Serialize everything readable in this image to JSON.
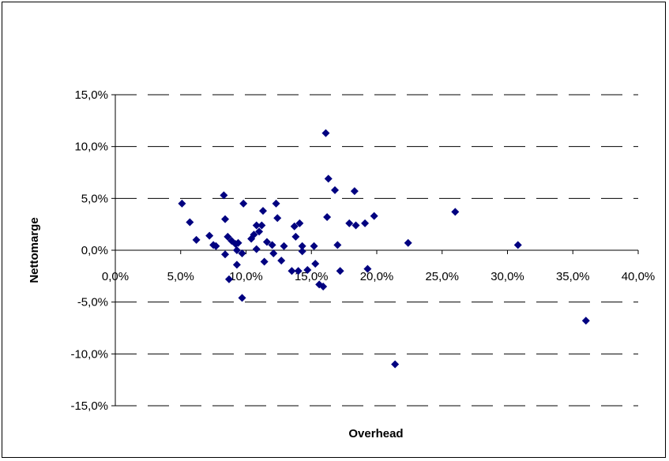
{
  "chart_data": {
    "type": "scatter",
    "title": "",
    "xlabel": "Overhead",
    "ylabel": "Nettomarge",
    "xlim": [
      0,
      40
    ],
    "ylim": [
      -15,
      15
    ],
    "x_ticks": [
      "0,0%",
      "5,0%",
      "10,0%",
      "15,0%",
      "20,0%",
      "25,0%",
      "30,0%",
      "35,0%",
      "40,0%"
    ],
    "y_ticks": [
      "15,0%",
      "10,0%",
      "5,0%",
      "0,0%",
      "-5,0%",
      "-10,0%",
      "-15,0%"
    ],
    "grid": "horizontal dashed",
    "marker": "diamond",
    "color": "#000080",
    "points": [
      [
        5.1,
        4.5
      ],
      [
        5.7,
        2.7
      ],
      [
        6.2,
        1.0
      ],
      [
        7.2,
        1.4
      ],
      [
        7.5,
        0.5
      ],
      [
        7.7,
        0.4
      ],
      [
        8.3,
        5.3
      ],
      [
        8.4,
        3.0
      ],
      [
        8.4,
        -0.4
      ],
      [
        8.6,
        1.3
      ],
      [
        8.7,
        -2.8
      ],
      [
        8.9,
        0.9
      ],
      [
        9.2,
        0.6
      ],
      [
        9.3,
        0.0
      ],
      [
        9.3,
        -1.4
      ],
      [
        9.4,
        0.7
      ],
      [
        9.7,
        -0.3
      ],
      [
        9.7,
        -4.6
      ],
      [
        9.8,
        4.5
      ],
      [
        10.4,
        1.1
      ],
      [
        10.6,
        1.5
      ],
      [
        10.8,
        2.4
      ],
      [
        10.8,
        0.1
      ],
      [
        11.0,
        1.8
      ],
      [
        11.2,
        2.4
      ],
      [
        11.3,
        3.8
      ],
      [
        11.4,
        -1.1
      ],
      [
        11.6,
        0.8
      ],
      [
        12.0,
        0.5
      ],
      [
        12.1,
        -0.3
      ],
      [
        12.3,
        4.5
      ],
      [
        12.4,
        3.1
      ],
      [
        12.7,
        -1.0
      ],
      [
        12.9,
        0.4
      ],
      [
        13.5,
        -2.0
      ],
      [
        13.7,
        2.3
      ],
      [
        13.8,
        1.3
      ],
      [
        14.0,
        -2.0
      ],
      [
        14.1,
        2.6
      ],
      [
        14.3,
        -0.1
      ],
      [
        14.3,
        0.4
      ],
      [
        14.7,
        -1.9
      ],
      [
        15.2,
        0.4
      ],
      [
        15.3,
        -1.3
      ],
      [
        15.6,
        -3.3
      ],
      [
        15.9,
        -3.5
      ],
      [
        16.1,
        11.3
      ],
      [
        16.2,
        3.2
      ],
      [
        16.3,
        6.9
      ],
      [
        16.8,
        5.8
      ],
      [
        17.0,
        0.5
      ],
      [
        17.2,
        -2.0
      ],
      [
        17.9,
        2.6
      ],
      [
        18.3,
        5.7
      ],
      [
        18.4,
        2.4
      ],
      [
        19.1,
        2.6
      ],
      [
        19.3,
        -1.8
      ],
      [
        19.8,
        3.3
      ],
      [
        21.4,
        -11.0
      ],
      [
        22.4,
        0.7
      ],
      [
        26.0,
        3.7
      ],
      [
        30.8,
        0.5
      ],
      [
        36.0,
        -6.8
      ]
    ]
  }
}
